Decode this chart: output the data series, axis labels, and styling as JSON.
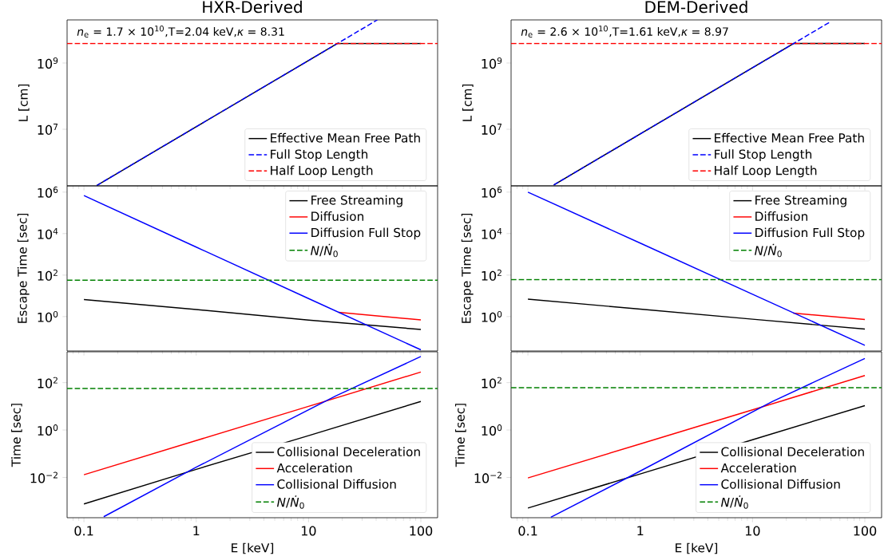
{
  "chart_data": [
    {
      "type": "line",
      "title": "HXR-Derived",
      "ylabel": "L [cm]",
      "log": "xy",
      "xlim": [
        0.0708,
        141
      ],
      "ylim": [
        195000.0,
        20000000000.0
      ],
      "xticks": [
        0.1,
        1,
        10,
        100
      ],
      "yticks": [
        {
          "value": 10000000.0,
          "label": "10$^{7}$"
        },
        {
          "value": 1000000000.0,
          "label": "10$^{9}$"
        }
      ],
      "tick_labels": "y",
      "legend": "bottom right",
      "annotations": [
        "*n*$_{e}$ = 1.7 × 10$^{10}$,T=2.04 keV,*κ* = 8.31"
      ],
      "series": [
        {
          "name": "Effective Mean Free Path",
          "color": "#000000",
          "line_style": "solid",
          "x": [
            0.13,
            1,
            10,
            18.1,
            100
          ],
          "values": [
            200000.0,
            11900000.0,
            1190000000.0,
            3900000000.0,
            3900000000.0
          ]
        },
        {
          "name": "Full Stop Length",
          "color": "#0000ff",
          "line_style": "dashed",
          "x": [
            0.13,
            1,
            10,
            41
          ],
          "values": [
            200000.0,
            11900000.0,
            1190000000.0,
            20000000000.0
          ]
        },
        {
          "name": "Half Loop Length",
          "color": "#ff0000",
          "line_style": "dashed",
          "x": [
            0.0708,
            141
          ],
          "values": [
            3900000000.0,
            3900000000.0
          ]
        }
      ]
    },
    {
      "type": "line",
      "title": "DEM-Derived",
      "ylabel": "L [cm]",
      "log": "xy",
      "xlim": [
        0.0708,
        141
      ],
      "ylim": [
        195000.0,
        20000000000.0
      ],
      "xticks": [
        0.1,
        1,
        10,
        100
      ],
      "yticks": [
        {
          "value": 10000000.0,
          "label": "10$^{7}$"
        },
        {
          "value": 1000000000.0,
          "label": "10$^{9}$"
        }
      ],
      "tick_labels": "y",
      "legend": "bottom right",
      "annotations": [
        "*n*$_{e}$ = 2.6 × 10$^{10}$,T=1.61 keV,*κ* = 8.97"
      ],
      "series": [
        {
          "name": "Effective Mean Free Path",
          "color": "#000000",
          "line_style": "solid",
          "x": [
            0.17,
            1,
            10,
            23.3,
            100
          ],
          "values": [
            208000.0,
            7200000.0,
            720000000.0,
            3900000000.0,
            3900000000.0
          ]
        },
        {
          "name": "Full Stop Length",
          "color": "#0000ff",
          "line_style": "dashed",
          "x": [
            0.17,
            1,
            10,
            50
          ],
          "values": [
            208000.0,
            7200000.0,
            720000000.0,
            18000000000.0
          ]
        },
        {
          "name": "Half Loop Length",
          "color": "#ff0000",
          "line_style": "dashed",
          "x": [
            0.0708,
            141
          ],
          "values": [
            3900000000.0,
            3900000000.0
          ]
        }
      ]
    },
    {
      "type": "line",
      "ylabel": "Escape Time [sec]",
      "log": "xy",
      "xlim": [
        0.0708,
        141
      ],
      "ylim": [
        0.022,
        2000000.0
      ],
      "xticks": [
        0.1,
        1,
        10,
        100
      ],
      "yticks": [
        {
          "value": 1,
          "label": "10$^{0}$"
        },
        {
          "value": 100,
          "label": "10$^{2}$"
        },
        {
          "value": 10000.0,
          "label": "10$^{4}$"
        },
        {
          "value": 1000000.0,
          "label": "10$^{6}$"
        }
      ],
      "tick_labels": "y",
      "legend": "top right",
      "series": [
        {
          "name": "Free Streaming",
          "color": "#000000",
          "line_style": "solid",
          "x": [
            0.1,
            1,
            10,
            100
          ],
          "values": [
            6.6,
            2.2,
            0.68,
            0.24
          ]
        },
        {
          "name": "Diffusion",
          "color": "#ff0000",
          "line_style": "solid",
          "x": [
            18.5,
            100
          ],
          "values": [
            1.6,
            0.69
          ]
        },
        {
          "name": "Diffusion Full Stop",
          "color": "#0000ff",
          "line_style": "solid",
          "x": [
            0.1,
            1,
            10,
            100
          ],
          "values": [
            680000.0,
            2240,
            7.4,
            0.025
          ]
        },
        {
          "name": "*N*/*Ṅ*$_{0}$",
          "color": "#008000",
          "line_style": "dashed",
          "x": [
            0.0708,
            141
          ],
          "values": [
            57,
            57
          ]
        }
      ]
    },
    {
      "type": "line",
      "ylabel": "Escape Time [sec]",
      "log": "xy",
      "xlim": [
        0.0708,
        141
      ],
      "ylim": [
        0.022,
        2000000.0
      ],
      "xticks": [
        0.1,
        1,
        10,
        100
      ],
      "yticks": [
        {
          "value": 1,
          "label": "10$^{0}$"
        },
        {
          "value": 100,
          "label": "10$^{2}$"
        },
        {
          "value": 10000.0,
          "label": "10$^{4}$"
        },
        {
          "value": 1000000.0,
          "label": "10$^{6}$"
        }
      ],
      "tick_labels": "y",
      "legend": "top right",
      "series": [
        {
          "name": "Free Streaming",
          "color": "#000000",
          "line_style": "solid",
          "x": [
            0.1,
            1,
            10,
            100
          ],
          "values": [
            6.9,
            2.3,
            0.75,
            0.25
          ]
        },
        {
          "name": "Diffusion",
          "color": "#ff0000",
          "line_style": "solid",
          "x": [
            23,
            100
          ],
          "values": [
            1.46,
            0.73
          ]
        },
        {
          "name": "Diffusion Full Stop",
          "color": "#0000ff",
          "line_style": "solid",
          "x": [
            0.1,
            1,
            10,
            100
          ],
          "values": [
            1000000.0,
            3470,
            12,
            0.041
          ]
        },
        {
          "name": "*N*/*Ṅ*$_{0}$",
          "color": "#008000",
          "line_style": "dashed",
          "x": [
            0.0708,
            141
          ],
          "values": [
            61,
            61
          ]
        }
      ]
    },
    {
      "type": "line",
      "ylabel": "Time [sec]",
      "xlabel": "E [keV]",
      "log": "xy",
      "xlim": [
        0.0708,
        141
      ],
      "ylim": [
        0.0002,
        2000
      ],
      "xticks": [
        0.1,
        1,
        10,
        100
      ],
      "yticks": [
        {
          "value": 0.01,
          "label": "10$^{−2}$"
        },
        {
          "value": 1,
          "label": "10$^{0}$"
        },
        {
          "value": 100,
          "label": "10$^{2}$"
        }
      ],
      "legend": "bottom right",
      "series": [
        {
          "name": "Collisional Deceleration",
          "color": "#000000",
          "line_style": "solid",
          "x": [
            0.1,
            1,
            10,
            100
          ],
          "values": [
            0.00076,
            0.022,
            0.58,
            16
          ]
        },
        {
          "name": "Acceleration",
          "color": "#ff0000",
          "line_style": "solid",
          "x": [
            0.1,
            1,
            10,
            100
          ],
          "values": [
            0.013,
            0.36,
            10,
            280
          ]
        },
        {
          "name": "Collisional Diffusion",
          "color": "#0000ff",
          "line_style": "solid",
          "x": [
            0.15,
            1,
            17.6,
            100
          ],
          "values": [
            0.00022,
            0.027,
            28,
            1260
          ]
        },
        {
          "name": "*N*/*Ṅ*$_{0}$",
          "color": "#008000",
          "line_style": "dashed",
          "x": [
            0.0708,
            141
          ],
          "values": [
            57,
            57
          ]
        }
      ]
    },
    {
      "type": "line",
      "ylabel": "Time [sec]",
      "xlabel": "E [keV]",
      "log": "xy",
      "xlim": [
        0.0708,
        141
      ],
      "ylim": [
        0.0002,
        2000
      ],
      "xticks": [
        0.1,
        1,
        10,
        100
      ],
      "yticks": [
        {
          "value": 0.01,
          "label": "10$^{−2}$"
        },
        {
          "value": 1,
          "label": "10$^{0}$"
        },
        {
          "value": 100,
          "label": "10$^{2}$"
        }
      ],
      "legend": "bottom right",
      "series": [
        {
          "name": "Collisional Deceleration",
          "color": "#000000",
          "line_style": "solid",
          "x": [
            0.1,
            1,
            10,
            100
          ],
          "values": [
            0.00051,
            0.014,
            0.39,
            10.7
          ]
        },
        {
          "name": "Acceleration",
          "color": "#ff0000",
          "line_style": "solid",
          "x": [
            0.1,
            1,
            10,
            100
          ],
          "values": [
            0.0095,
            0.26,
            7.1,
            200
          ]
        },
        {
          "name": "Collisional Diffusion",
          "color": "#0000ff",
          "line_style": "solid",
          "x": [
            0.16,
            0.81,
            15,
            100
          ],
          "values": [
            0.00021,
            0.011,
            16,
            1050
          ]
        },
        {
          "name": "*N*/*Ṅ*$_{0}$",
          "color": "#008000",
          "line_style": "dashed",
          "x": [
            0.0708,
            141
          ],
          "values": [
            61,
            61
          ]
        }
      ]
    }
  ]
}
